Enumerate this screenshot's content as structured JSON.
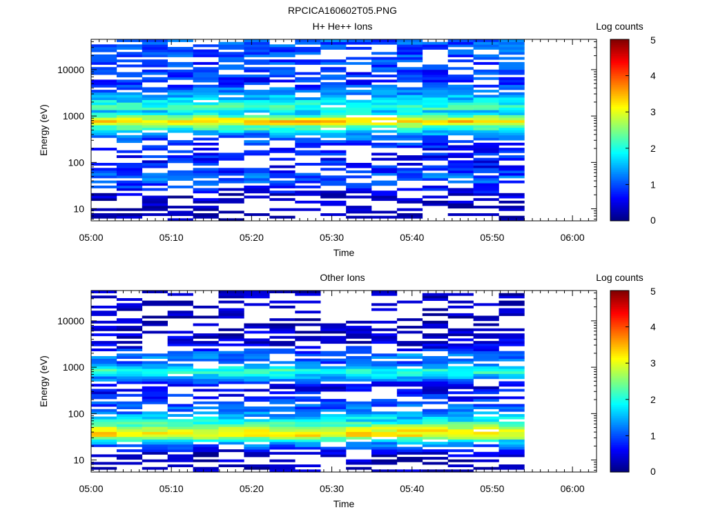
{
  "figure_title": "RPCICA160602T05.PNG",
  "colormap": [
    "#00007f",
    "#0000ff",
    "#007fff",
    "#00ffff",
    "#7fff7f",
    "#ffff00",
    "#ff7f00",
    "#ff0000",
    "#7f0000"
  ],
  "chart_data": [
    {
      "type": "heatmap",
      "title": "H+ He++ Ions",
      "xlabel": "Time",
      "ylabel": "Energy (eV)",
      "yscale": "log",
      "xlim": [
        "05:00",
        "06:03"
      ],
      "ylim": [
        5.5,
        45000
      ],
      "x_ticks": [
        "05:00",
        "05:10",
        "05:20",
        "05:30",
        "05:40",
        "05:50",
        "06:00"
      ],
      "y_ticks": [
        10,
        100,
        1000,
        10000
      ],
      "y_tick_labels": [
        "10",
        "100",
        "1000",
        "10000"
      ],
      "data_time_range": [
        "05:00",
        "05:54"
      ],
      "colorbar": {
        "label": "Log counts",
        "range": [
          0,
          5
        ],
        "ticks": [
          "0",
          "1",
          "2",
          "3",
          "4",
          "5"
        ]
      },
      "energy_bands": [
        {
          "energy": 25000,
          "value": 1.0
        },
        {
          "energy": 12000,
          "value": 0.9
        },
        {
          "energy": 5000,
          "value": 0.8
        },
        {
          "energy": 2000,
          "value": 1.8
        },
        {
          "energy": 1500,
          "value": 2.3
        },
        {
          "energy": 1200,
          "value": 1.5
        },
        {
          "energy": 900,
          "value": 2.8
        },
        {
          "energy": 750,
          "value": 3.5
        },
        {
          "energy": 600,
          "value": 2.4
        },
        {
          "energy": 400,
          "value": 1.2
        },
        {
          "energy": 200,
          "value": 0.7
        },
        {
          "energy": 80,
          "value": 0.7
        },
        {
          "energy": 45,
          "value": 1.1
        },
        {
          "energy": 30,
          "value": 0.8
        },
        {
          "energy": 18,
          "value": 0.3
        },
        {
          "energy": 9,
          "value": 0.1
        }
      ]
    },
    {
      "type": "heatmap",
      "title": "Other Ions",
      "xlabel": "Time",
      "ylabel": "Energy (eV)",
      "yscale": "log",
      "xlim": [
        "05:00",
        "06:03"
      ],
      "ylim": [
        5.5,
        45000
      ],
      "x_ticks": [
        "05:00",
        "05:10",
        "05:20",
        "05:30",
        "05:40",
        "05:50",
        "06:00"
      ],
      "y_ticks": [
        10,
        100,
        1000,
        10000
      ],
      "y_tick_labels": [
        "10",
        "100",
        "1000",
        "10000"
      ],
      "data_time_range": [
        "05:00",
        "05:54"
      ],
      "colorbar": {
        "label": "Log counts",
        "range": [
          0,
          5
        ],
        "ticks": [
          "0",
          "1",
          "2",
          "3",
          "4",
          "5"
        ]
      },
      "energy_bands": [
        {
          "energy": 25000,
          "value": 0.2
        },
        {
          "energy": 8000,
          "value": 0.2
        },
        {
          "energy": 3000,
          "value": 0.5
        },
        {
          "energy": 1800,
          "value": 1.2
        },
        {
          "energy": 1200,
          "value": 1.0
        },
        {
          "energy": 850,
          "value": 2.2
        },
        {
          "energy": 700,
          "value": 1.8
        },
        {
          "energy": 400,
          "value": 0.5
        },
        {
          "energy": 200,
          "value": 0.8
        },
        {
          "energy": 110,
          "value": 1.2
        },
        {
          "energy": 65,
          "value": 2.0
        },
        {
          "energy": 45,
          "value": 3.0
        },
        {
          "energy": 35,
          "value": 3.3
        },
        {
          "energy": 25,
          "value": 1.6
        },
        {
          "energy": 15,
          "value": 0.4
        },
        {
          "energy": 8,
          "value": 0.2
        }
      ]
    }
  ]
}
